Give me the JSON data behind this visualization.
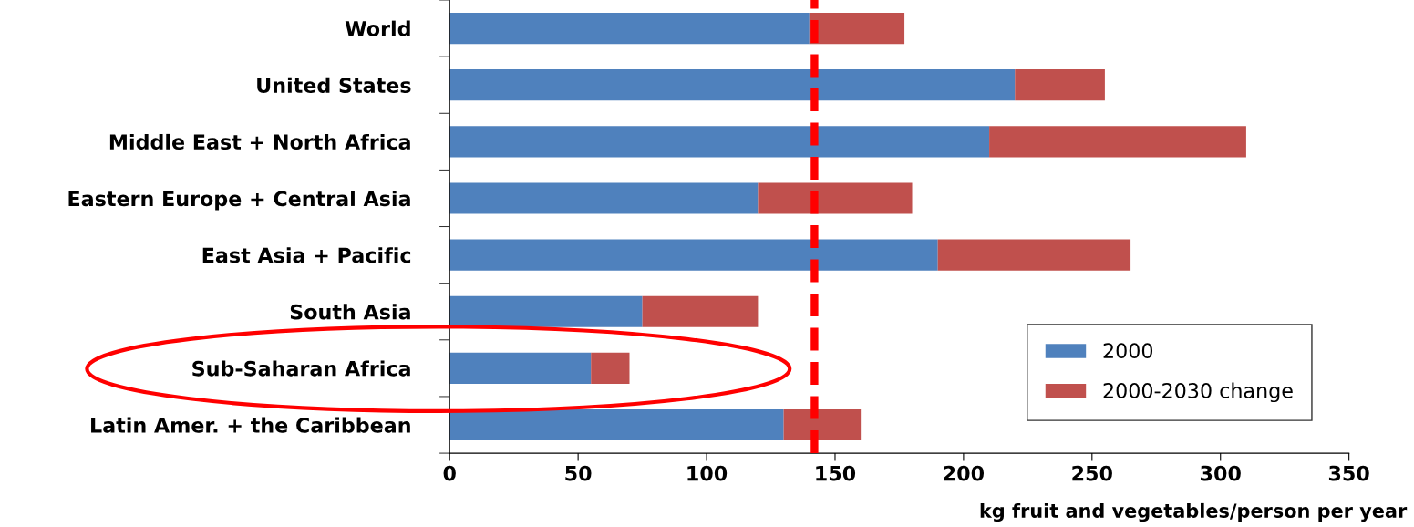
{
  "chart_data": {
    "type": "bar",
    "orientation": "horizontal",
    "stacked": true,
    "xlabel": "kg fruit and vegetables/person per year",
    "categories": [
      "World",
      "United States",
      "Middle East + North Africa",
      "Eastern Europe + Central Asia",
      "East Asia + Pacific",
      "South Asia",
      "Sub-Saharan Africa",
      "Latin Amer. + the Caribbean"
    ],
    "series": [
      {
        "name": "2000",
        "color": "#4f81bd",
        "values": [
          140,
          220,
          210,
          120,
          190,
          75,
          55,
          130
        ]
      },
      {
        "name": "2000-2030 change",
        "color": "#c0504d",
        "values": [
          37,
          35,
          100,
          60,
          75,
          45,
          15,
          30
        ]
      }
    ],
    "xlim": [
      0,
      350
    ],
    "xticks": [
      0,
      50,
      100,
      150,
      200,
      250,
      300,
      350
    ],
    "ref_lines": [
      {
        "axis": "x",
        "value": 142,
        "color": "#ff0000",
        "line_style": "dashed"
      }
    ],
    "legend": "bottom right",
    "grid": false
  }
}
